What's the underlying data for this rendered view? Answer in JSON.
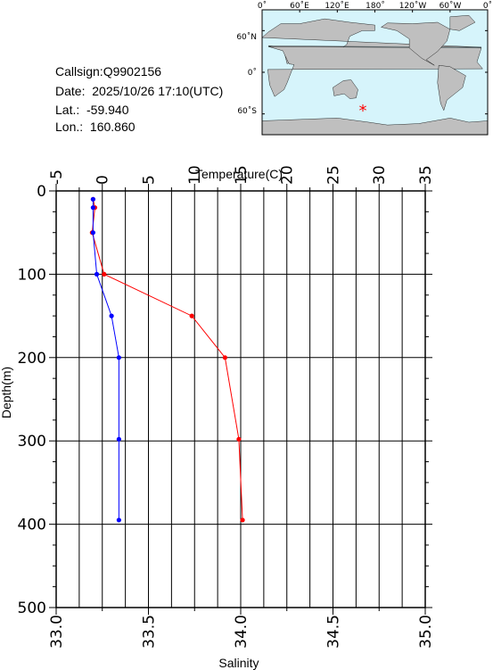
{
  "info": {
    "callsign": "Callsign:Q9902156",
    "date": "Date:  2025/10/26 17:10(UTC)",
    "lat": "Lat.:  -59.940",
    "lon": "Lon.:  160.860"
  },
  "map": {
    "top_labels": [
      "0˚",
      "60˚E",
      "120˚E",
      "180˚",
      "120˚W",
      "60˚W",
      "0˚"
    ],
    "left_labels": [
      "60˚N",
      "0˚",
      "60˚S"
    ],
    "ocean_color": "#d6f4fb",
    "land_color": "#bfbfbf",
    "marker_symbol": "*",
    "marker_color": "#ff0000"
  },
  "chart_data": {
    "type": "line",
    "x_top_label": "Temperature(C)",
    "x_bottom_label": "Salinity",
    "ylabel": "Depth(m)",
    "temperature_axis": {
      "range": [
        -5,
        35
      ],
      "ticks": [
        "-5",
        "0",
        "5",
        "10",
        "15",
        "20",
        "25",
        "30",
        "35"
      ]
    },
    "salinity_axis": {
      "range": [
        33.0,
        35.0
      ],
      "ticks": [
        "33.0",
        "33.5",
        "34.0",
        "34.5",
        "35.0"
      ]
    },
    "depth_axis": {
      "range": [
        0,
        500
      ],
      "inverted": true,
      "ticks": [
        "0",
        "100",
        "200",
        "300",
        "400",
        "500"
      ]
    },
    "grid": true,
    "series": [
      {
        "name": "Temperature",
        "axis": "temperature",
        "color": "#ff0000",
        "points": [
          [
            -1.0,
            10
          ],
          [
            -0.8,
            20
          ],
          [
            -1.1,
            50
          ],
          [
            0.2,
            100
          ],
          [
            9.7,
            150
          ],
          [
            13.3,
            200
          ],
          [
            14.8,
            298
          ],
          [
            15.2,
            395
          ]
        ]
      },
      {
        "name": "Salinity",
        "axis": "salinity",
        "color": "#0000ff",
        "points": [
          [
            33.2,
            10
          ],
          [
            33.2,
            20
          ],
          [
            33.2,
            50
          ],
          [
            33.22,
            100
          ],
          [
            33.3,
            150
          ],
          [
            33.34,
            200
          ],
          [
            33.34,
            298
          ],
          [
            33.34,
            395
          ]
        ]
      }
    ]
  }
}
